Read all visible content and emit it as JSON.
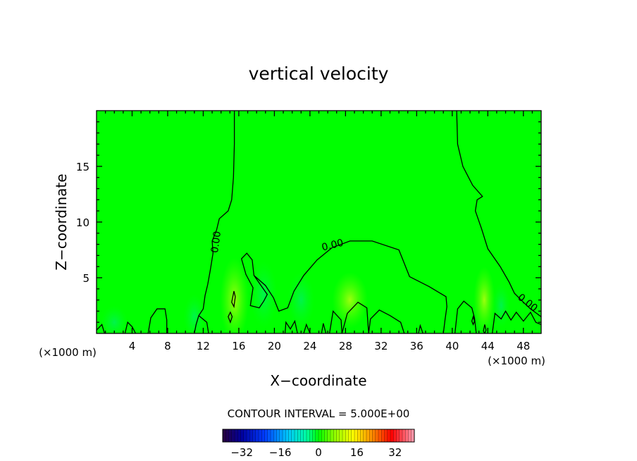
{
  "chart_data": {
    "type": "heatmap",
    "title": "vertical velocity",
    "xlabel": "X−coordinate",
    "ylabel": "Z−coordinate",
    "x_unit": "(×1000 m)",
    "y_unit": "(×1000 m)",
    "xlim": [
      0,
      50
    ],
    "ylim": [
      0,
      20
    ],
    "x_ticks": [
      4,
      8,
      12,
      16,
      20,
      24,
      28,
      32,
      36,
      40,
      44,
      48
    ],
    "y_ticks": [
      5,
      10,
      15
    ],
    "x_tick_labels": [
      "4",
      "8",
      "12",
      "16",
      "20",
      "24",
      "28",
      "32",
      "36",
      "40",
      "44",
      "48"
    ],
    "y_tick_labels": [
      "5",
      "10",
      "15"
    ],
    "background_value": 0,
    "background_color": "#00ff00",
    "contour_interval_text": "CONTOUR INTERVAL = 5.000E+00",
    "contour_labels": [
      "0.00",
      "0.00",
      "0.00"
    ],
    "colorbar": {
      "min": -40,
      "max": 40,
      "tick_values": [
        -32,
        -16,
        0,
        16,
        32
      ],
      "tick_labels": [
        "−32",
        "−16",
        "0",
        "16",
        "32"
      ]
    },
    "zero_contours": [
      [
        [
          15.5,
          20
        ],
        [
          15.5,
          17
        ],
        [
          15.4,
          14
        ],
        [
          15.2,
          12
        ],
        [
          14.8,
          11
        ],
        [
          13.8,
          10.3
        ],
        [
          13.5,
          9.3
        ],
        [
          13.0,
          8.3
        ],
        [
          13.1,
          7.2
        ],
        [
          12.8,
          5.7
        ],
        [
          12.5,
          4.4
        ],
        [
          12.2,
          3.4
        ],
        [
          12.0,
          2.2
        ],
        [
          11.5,
          1.6
        ],
        [
          11.2,
          0.8
        ],
        [
          11.0,
          0
        ]
      ],
      [
        [
          40.5,
          20
        ],
        [
          40.6,
          17
        ],
        [
          41.2,
          15
        ],
        [
          42.3,
          13.3
        ],
        [
          43.4,
          12.3
        ],
        [
          42.8,
          12.0
        ],
        [
          42.6,
          11.0
        ],
        [
          43.3,
          9.4
        ],
        [
          44.0,
          7.6
        ],
        [
          45.4,
          6.0
        ],
        [
          46.4,
          4.6
        ],
        [
          47.0,
          3.6
        ],
        [
          48.0,
          2.8
        ],
        [
          48.8,
          2.2
        ],
        [
          50,
          1.5
        ]
      ],
      [
        [
          26.5,
          7.7
        ],
        [
          28.5,
          8.3
        ],
        [
          31,
          8.3
        ],
        [
          34,
          7.5
        ],
        [
          34.5,
          6.5
        ],
        [
          35.2,
          5.1
        ],
        [
          37.4,
          4.2
        ],
        [
          39.3,
          3.3
        ],
        [
          39.4,
          2.4
        ],
        [
          39.2,
          1.3
        ],
        [
          39.0,
          0
        ]
      ],
      [
        [
          17.7,
          5.2
        ],
        [
          19.0,
          4.3
        ],
        [
          19.9,
          3.2
        ],
        [
          20.5,
          2.0
        ],
        [
          21.5,
          2.3
        ],
        [
          22.2,
          3.8
        ],
        [
          23.3,
          5.2
        ],
        [
          24.8,
          6.6
        ],
        [
          26.5,
          7.7
        ]
      ],
      [
        [
          17.7,
          5.2
        ],
        [
          17.5,
          6.6
        ],
        [
          16.9,
          7.2
        ],
        [
          16.3,
          6.7
        ],
        [
          16.8,
          5.3
        ],
        [
          17.6,
          4.1
        ],
        [
          17.3,
          2.5
        ],
        [
          18.3,
          2.3
        ],
        [
          18.8,
          2.9
        ],
        [
          19.2,
          3.5
        ],
        [
          17.7,
          5.2
        ]
      ]
    ],
    "ground_contours": [
      [
        [
          0,
          0.3
        ],
        [
          0.6,
          0.8
        ],
        [
          0.9,
          0
        ]
      ],
      [
        [
          3.2,
          0
        ],
        [
          3.5,
          1.0
        ],
        [
          4.0,
          0.6
        ],
        [
          4.4,
          0
        ]
      ],
      [
        [
          5.8,
          0
        ],
        [
          6.1,
          1.4
        ],
        [
          6.8,
          2.2
        ],
        [
          7.7,
          2.2
        ],
        [
          7.9,
          1.2
        ],
        [
          7.9,
          0
        ]
      ],
      [
        [
          11.5,
          1.6
        ],
        [
          12.4,
          1.0
        ],
        [
          12.6,
          0
        ]
      ],
      [
        [
          30.6,
          0
        ],
        [
          30.8,
          1.3
        ],
        [
          31.8,
          2.1
        ],
        [
          33.0,
          1.6
        ],
        [
          34.2,
          1.0
        ],
        [
          34.6,
          0
        ]
      ],
      [
        [
          27.6,
          0
        ],
        [
          28.2,
          1.8
        ],
        [
          29.4,
          2.8
        ],
        [
          30.4,
          2.3
        ],
        [
          30.6,
          0
        ]
      ],
      [
        [
          26.2,
          0
        ],
        [
          26.6,
          2.0
        ],
        [
          27.5,
          1.2
        ],
        [
          27.6,
          0
        ]
      ],
      [
        [
          21.2,
          0
        ],
        [
          21.3,
          1.0
        ],
        [
          21.8,
          0.4
        ],
        [
          22.3,
          1.1
        ],
        [
          22.6,
          0
        ]
      ],
      [
        [
          23.3,
          0
        ],
        [
          23.6,
          0.8
        ],
        [
          24.0,
          0
        ]
      ],
      [
        [
          25.3,
          0
        ],
        [
          25.5,
          0.9
        ],
        [
          25.8,
          0
        ]
      ],
      [
        [
          36.2,
          0
        ],
        [
          36.4,
          0.7
        ],
        [
          36.7,
          0
        ]
      ],
      [
        [
          40.3,
          0
        ],
        [
          40.6,
          2.2
        ],
        [
          41.3,
          2.9
        ],
        [
          42.2,
          2.3
        ],
        [
          42.5,
          1.4
        ],
        [
          42.7,
          0
        ]
      ],
      [
        [
          44.5,
          0
        ],
        [
          44.8,
          1.8
        ],
        [
          45.5,
          1.3
        ],
        [
          46.0,
          2.0
        ],
        [
          46.6,
          1.2
        ],
        [
          47.2,
          1.9
        ],
        [
          48.0,
          1.1
        ],
        [
          48.8,
          1.9
        ],
        [
          49.4,
          1.0
        ],
        [
          50,
          0.8
        ]
      ]
    ],
    "small_contours": [
      [
        [
          14.8,
          1.5
        ],
        [
          15.05,
          1.9
        ],
        [
          15.25,
          1.5
        ],
        [
          15.05,
          1.0
        ],
        [
          14.8,
          1.5
        ]
      ],
      [
        [
          15.2,
          2.8
        ],
        [
          15.45,
          3.8
        ],
        [
          15.6,
          3.3
        ],
        [
          15.45,
          2.4
        ],
        [
          15.2,
          2.8
        ]
      ],
      [
        [
          43.5,
          0.2
        ],
        [
          43.65,
          0.8
        ],
        [
          43.8,
          0.3
        ],
        [
          43.65,
          0.0
        ],
        [
          43.5,
          0.2
        ]
      ],
      [
        [
          42.2,
          1.1
        ],
        [
          42.35,
          1.5
        ],
        [
          42.5,
          1.1
        ],
        [
          42.35,
          0.8
        ],
        [
          42.2,
          1.1
        ]
      ]
    ],
    "warm_patches": [
      {
        "x": 15.5,
        "z": 3.0,
        "rx": 1.6,
        "rz": 3.8,
        "value": 8
      },
      {
        "x": 43.6,
        "z": 3.0,
        "rx": 1.2,
        "rz": 3.0,
        "value": 6
      },
      {
        "x": 28.5,
        "z": 3.0,
        "rx": 2.0,
        "rz": 2.5,
        "value": 3
      }
    ],
    "cool_patches": [
      {
        "x": 18.8,
        "z": 3.5,
        "rx": 1.5,
        "rz": 3.0,
        "value": -3
      },
      {
        "x": 23.0,
        "z": 3.0,
        "rx": 1.5,
        "rz": 2.5,
        "value": -3
      },
      {
        "x": 2.0,
        "z": 1.0,
        "rx": 1.5,
        "rz": 1.5,
        "value": -4
      },
      {
        "x": 11.0,
        "z": 1.5,
        "rx": 1.2,
        "rz": 2.0,
        "value": -3
      },
      {
        "x": 45.5,
        "z": 2.5,
        "rx": 1.0,
        "rz": 2.0,
        "value": -3
      }
    ]
  }
}
